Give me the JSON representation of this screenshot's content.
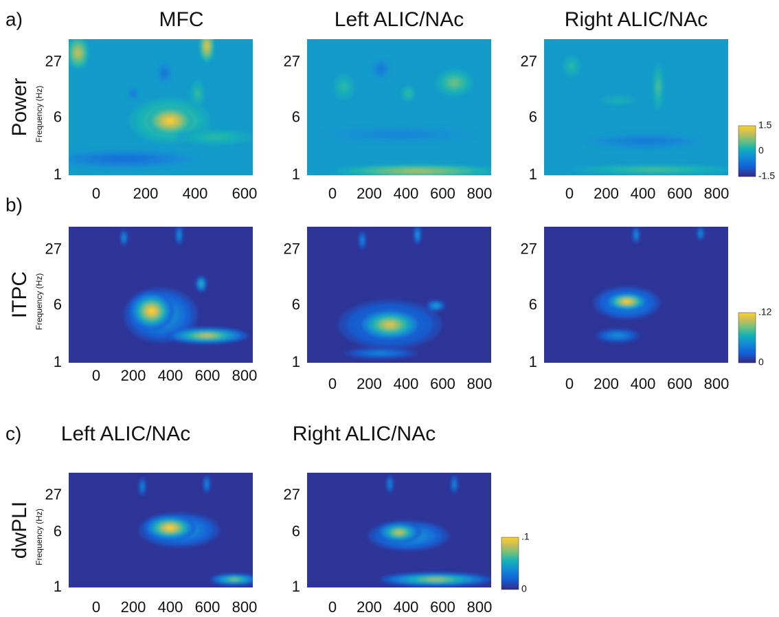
{
  "rows": [
    {
      "label": "a)",
      "name": "Power",
      "y_axis_label": "Frequency (Hz)",
      "y_ticks": [
        "27",
        "6",
        "1"
      ],
      "titles": [
        "MFC",
        "Left ALIC/NAc",
        "Right ALIC/NAc"
      ],
      "panels": [
        {
          "x_ticks": [
            "0",
            "200",
            "400",
            "600"
          ]
        },
        {
          "x_ticks": [
            "0",
            "200",
            "400",
            "600",
            "800"
          ]
        },
        {
          "x_ticks": [
            "0",
            "200",
            "400",
            "600",
            "800"
          ]
        }
      ],
      "colorbar": [
        "1.5",
        "0",
        "-1.5"
      ]
    },
    {
      "label": "b)",
      "name": "ITPC",
      "y_axis_label": "Frequency (Hz)",
      "y_ticks": [
        "27",
        "6",
        "1"
      ],
      "panels": [
        {
          "x_ticks": [
            "0",
            "200",
            "400",
            "600",
            "800"
          ]
        },
        {
          "x_ticks": [
            "0",
            "200",
            "400",
            "600",
            "800"
          ]
        },
        {
          "x_ticks": [
            "0",
            "200",
            "400",
            "600",
            "800"
          ]
        }
      ],
      "colorbar": [
        ".12",
        "0"
      ]
    },
    {
      "label": "c)",
      "name": "dwPLI",
      "y_axis_label": "Frequency (Hz)",
      "y_ticks": [
        "27",
        "6",
        "1"
      ],
      "titles": [
        "Left ALIC/NAc",
        "Right ALIC/NAc"
      ],
      "panels": [
        {
          "x_ticks": [
            "0",
            "200",
            "400",
            "600",
            "800"
          ]
        },
        {
          "x_ticks": [
            "0",
            "200",
            "400",
            "600",
            "800"
          ]
        }
      ],
      "colorbar": [
        ".1",
        "0"
      ]
    }
  ]
}
